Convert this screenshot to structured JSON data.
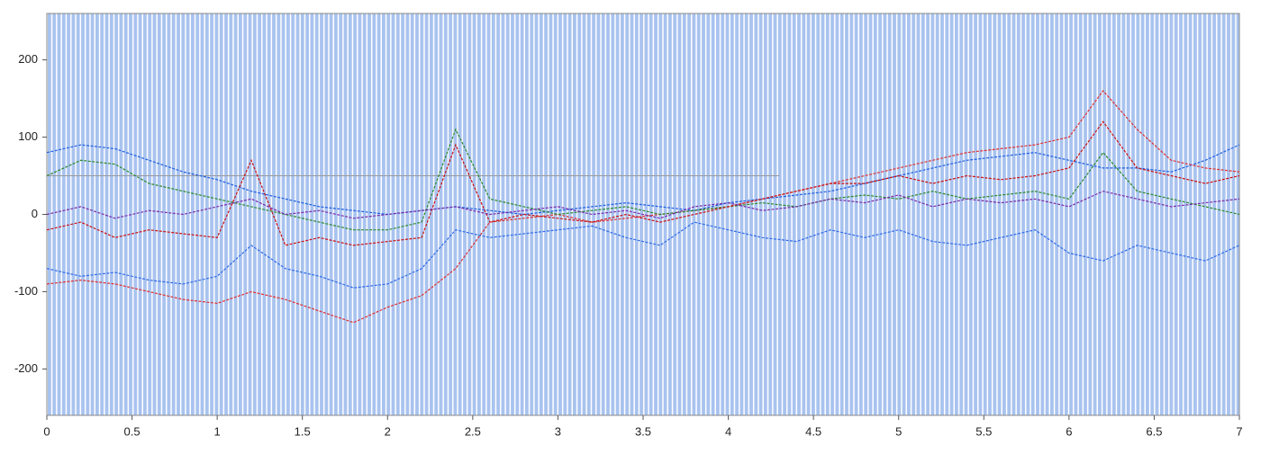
{
  "chart_data": {
    "type": "line",
    "x": [
      0,
      0.2,
      0.4,
      0.6,
      0.8,
      1,
      1.2,
      1.4,
      1.6,
      1.8,
      2,
      2.2,
      2.4,
      2.6,
      2.8,
      3,
      3.2,
      3.4,
      3.6,
      3.8,
      4,
      4.2,
      4.4,
      4.6,
      4.8,
      5,
      5.2,
      5.4,
      5.6,
      5.8,
      6,
      6.2,
      6.4,
      6.6,
      6.8,
      7
    ],
    "series": [
      {
        "color": "#1f5fe0",
        "values": [
          80,
          90,
          85,
          70,
          55,
          45,
          30,
          20,
          10,
          5,
          0,
          5,
          10,
          5,
          0,
          5,
          10,
          15,
          10,
          5,
          15,
          20,
          25,
          30,
          40,
          50,
          60,
          70,
          75,
          80,
          70,
          60,
          60,
          55,
          70,
          90
        ]
      },
      {
        "color": "#e03030",
        "values": [
          -90,
          -85,
          -90,
          -100,
          -110,
          -115,
          -100,
          -110,
          -125,
          -140,
          -120,
          -105,
          -70,
          -10,
          -5,
          0,
          -10,
          -5,
          0,
          5,
          10,
          20,
          30,
          40,
          50,
          60,
          70,
          80,
          85,
          90,
          100,
          160,
          110,
          70,
          60,
          55
        ]
      },
      {
        "color": "#2a8a2a",
        "values": [
          50,
          70,
          65,
          40,
          30,
          20,
          10,
          0,
          -10,
          -20,
          -20,
          -10,
          110,
          20,
          10,
          0,
          5,
          10,
          0,
          5,
          10,
          15,
          10,
          20,
          25,
          20,
          30,
          20,
          25,
          30,
          20,
          80,
          30,
          20,
          10,
          0
        ]
      },
      {
        "color": "#2f6ae8",
        "values": [
          -70,
          -80,
          -75,
          -85,
          -90,
          -80,
          -40,
          -70,
          -80,
          -95,
          -90,
          -70,
          -20,
          -30,
          -25,
          -20,
          -15,
          -30,
          -40,
          -10,
          -20,
          -30,
          -35,
          -20,
          -30,
          -20,
          -35,
          -40,
          -30,
          -20,
          -50,
          -60,
          -40,
          -50,
          -60,
          -40
        ]
      },
      {
        "color": "#cc1010",
        "values": [
          -20,
          -10,
          -30,
          -20,
          -25,
          -30,
          70,
          -40,
          -30,
          -40,
          -35,
          -30,
          90,
          -10,
          0,
          -5,
          -10,
          0,
          -10,
          0,
          10,
          20,
          30,
          40,
          40,
          50,
          40,
          50,
          45,
          50,
          60,
          120,
          60,
          50,
          40,
          50
        ]
      },
      {
        "color": "#7a2aa8",
        "values": [
          0,
          10,
          -5,
          5,
          0,
          10,
          20,
          0,
          5,
          -5,
          0,
          5,
          10,
          0,
          5,
          10,
          0,
          5,
          -5,
          10,
          15,
          5,
          10,
          20,
          15,
          25,
          10,
          20,
          15,
          20,
          10,
          30,
          20,
          10,
          15,
          20
        ]
      }
    ],
    "hline": {
      "y": 50,
      "x": [
        0,
        4.3
      ],
      "color": "#999999"
    },
    "xlim": [
      0,
      7
    ],
    "xticks": [
      0,
      0.5,
      1,
      1.5,
      2,
      2.5,
      3,
      3.5,
      4,
      4.5,
      5,
      5.5,
      6,
      6.5,
      7
    ],
    "ylim": [
      -260,
      260
    ],
    "yticks": [
      -200,
      -100,
      0,
      100,
      200
    ]
  }
}
